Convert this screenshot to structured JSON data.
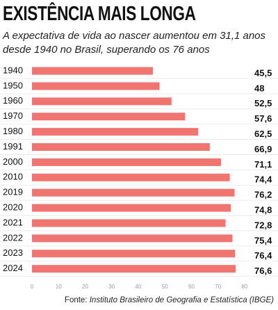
{
  "chart_data": {
    "type": "barh",
    "title": "EXISTÊNCIA MAIS LONGA",
    "subtitle": "A expectativa de vida ao nascer aumentou em 31,1 anos desde 1940 no Brasil, superando os 76 anos",
    "source_label": "Fonte:",
    "source": "Instituto Brasileiro de Geografia e Estatística (IBGE)",
    "categories": [
      "1940",
      "1950",
      "1960",
      "1970",
      "1980",
      "1991",
      "2000",
      "2010",
      "2019",
      "2020",
      "2021",
      "2022",
      "2023",
      "2024"
    ],
    "values": [
      45.5,
      48,
      52.5,
      57.6,
      62.5,
      66.9,
      71.1,
      74.4,
      76.2,
      74.8,
      72.8,
      75.4,
      76.4,
      76.6
    ],
    "value_labels": [
      "45,5",
      "48",
      "52,5",
      "57,6",
      "62,5",
      "66,9",
      "71,1",
      "74,4",
      "76,2",
      "74,8",
      "72,8",
      "75,4",
      "76,4",
      "76,6"
    ],
    "color": "#f07470",
    "xlim": [
      0,
      80
    ],
    "xticks": [
      0,
      10,
      20,
      30,
      40,
      50,
      60,
      70,
      80
    ]
  }
}
